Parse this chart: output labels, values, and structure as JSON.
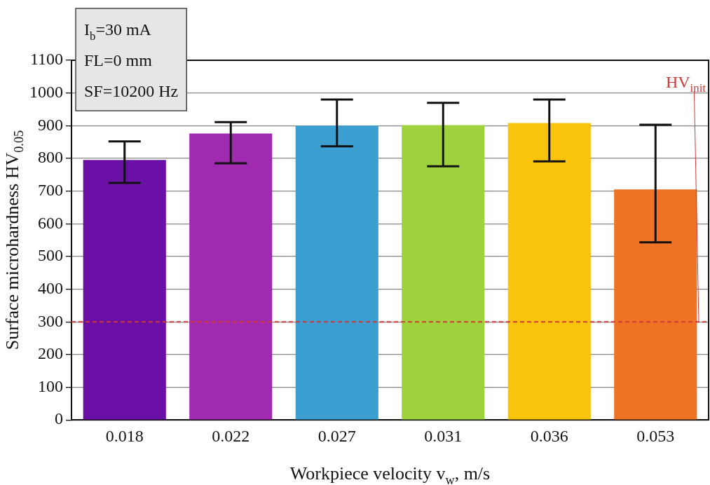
{
  "chart_data": {
    "type": "bar",
    "xlabel": "Workpiece velocity v$_{w}$, m/s",
    "ylabel": "Surface microhardness HV$_{0.05}$",
    "categories": [
      "0.018",
      "0.022",
      "0.027",
      "0.031",
      "0.036",
      "0.053"
    ],
    "values": [
      795,
      876,
      900,
      902,
      908,
      705
    ],
    "colors": [
      "#6a10a6",
      "#a02ab0",
      "#3b9fd2",
      "#9dd23c",
      "#f8c50c",
      "#ee7325"
    ],
    "errors": [
      [
        725,
        852
      ],
      [
        785,
        911
      ],
      [
        837,
        980
      ],
      [
        776,
        970
      ],
      [
        791,
        980
      ],
      [
        543,
        903
      ]
    ],
    "ylim": [
      0,
      1100
    ],
    "yticks": [
      0,
      100,
      200,
      300,
      400,
      500,
      600,
      700,
      800,
      900,
      1000,
      1100
    ],
    "grid": "y",
    "ref_lines": [
      {
        "axis": "y",
        "value": 300,
        "label": "HV$_{init}$",
        "color": "#d03a3a",
        "line_style": "dashed"
      }
    ],
    "annotations": [
      "I$_{b}$=30 mA",
      "FL=0 mm",
      "SF=10200 Hz"
    ]
  }
}
